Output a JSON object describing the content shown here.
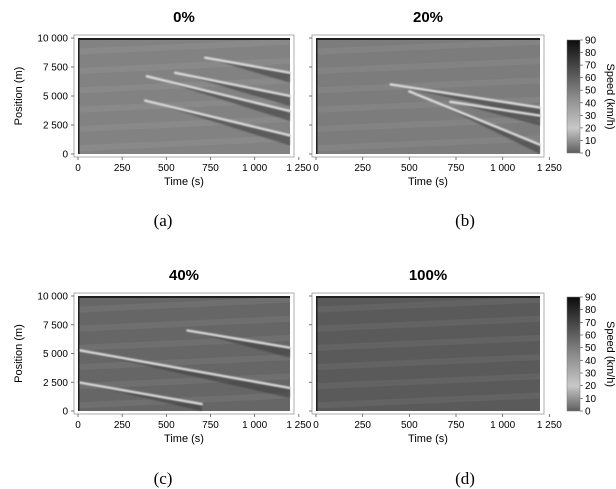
{
  "chart_data": [
    {
      "type": "heatmap",
      "panel": "(a)",
      "title": "0%",
      "xlabel": "Time (s)",
      "ylabel": "Position (m)",
      "xlim": [
        0,
        1200
      ],
      "ylim": [
        0,
        10000
      ],
      "xticks": [
        "0",
        "250",
        "500",
        "750",
        "1 000",
        "1 250"
      ],
      "yticks": [
        "0",
        "2 500",
        "5 000",
        "7 500",
        "10 000"
      ],
      "background_speed": 48,
      "congestion_waves": [
        {
          "t_start": 380,
          "t_end": 1200,
          "pos_start": 4600,
          "pos_end": 1600
        },
        {
          "t_start": 550,
          "t_end": 1200,
          "pos_start": 7000,
          "pos_end": 5000
        },
        {
          "t_start": 390,
          "t_end": 1200,
          "pos_start": 6700,
          "pos_end": 3700
        },
        {
          "t_start": 720,
          "t_end": 1200,
          "pos_start": 8300,
          "pos_end": 7000
        }
      ]
    },
    {
      "type": "heatmap",
      "panel": "(b)",
      "title": "20%",
      "xlabel": "Time (s)",
      "ylabel": "",
      "xlim": [
        0,
        1200
      ],
      "ylim": [
        0,
        10000
      ],
      "xticks": [
        "0",
        "250",
        "500",
        "750",
        "1 000",
        "1 250"
      ],
      "yticks": [],
      "background_speed": 50,
      "congestion_waves": [
        {
          "t_start": 400,
          "t_end": 1200,
          "pos_start": 6000,
          "pos_end": 4000
        },
        {
          "t_start": 500,
          "t_end": 1200,
          "pos_start": 5400,
          "pos_end": 800
        },
        {
          "t_start": 720,
          "t_end": 1200,
          "pos_start": 4500,
          "pos_end": 3300
        }
      ]
    },
    {
      "type": "heatmap",
      "panel": "(c)",
      "title": "40%",
      "xlabel": "Time (s)",
      "ylabel": "Position (m)",
      "xlim": [
        0,
        1200
      ],
      "ylim": [
        0,
        10000
      ],
      "xticks": [
        "0",
        "250",
        "500",
        "750",
        "1 000",
        "1 250"
      ],
      "yticks": [
        "0",
        "2 500",
        "5 000",
        "7 500",
        "10 000"
      ],
      "background_speed": 58,
      "congestion_waves": [
        {
          "t_start": 0,
          "t_end": 1200,
          "pos_start": 5300,
          "pos_end": 2000
        },
        {
          "t_start": 620,
          "t_end": 1200,
          "pos_start": 7000,
          "pos_end": 5500
        },
        {
          "t_start": 0,
          "t_end": 700,
          "pos_start": 2500,
          "pos_end": 600
        }
      ]
    },
    {
      "type": "heatmap",
      "panel": "(d)",
      "title": "100%",
      "xlabel": "Time (s)",
      "ylabel": "",
      "xlim": [
        0,
        1200
      ],
      "ylim": [
        0,
        10000
      ],
      "xticks": [
        "0",
        "250",
        "500",
        "750",
        "1 000",
        "1 250"
      ],
      "yticks": [],
      "background_speed": 62,
      "congestion_waves": []
    }
  ],
  "colorbar": {
    "label": "Speed (km/h)",
    "min": 0,
    "max": 90,
    "ticks": [
      "0",
      "10",
      "20",
      "30",
      "40",
      "50",
      "60",
      "70",
      "80",
      "90"
    ]
  }
}
